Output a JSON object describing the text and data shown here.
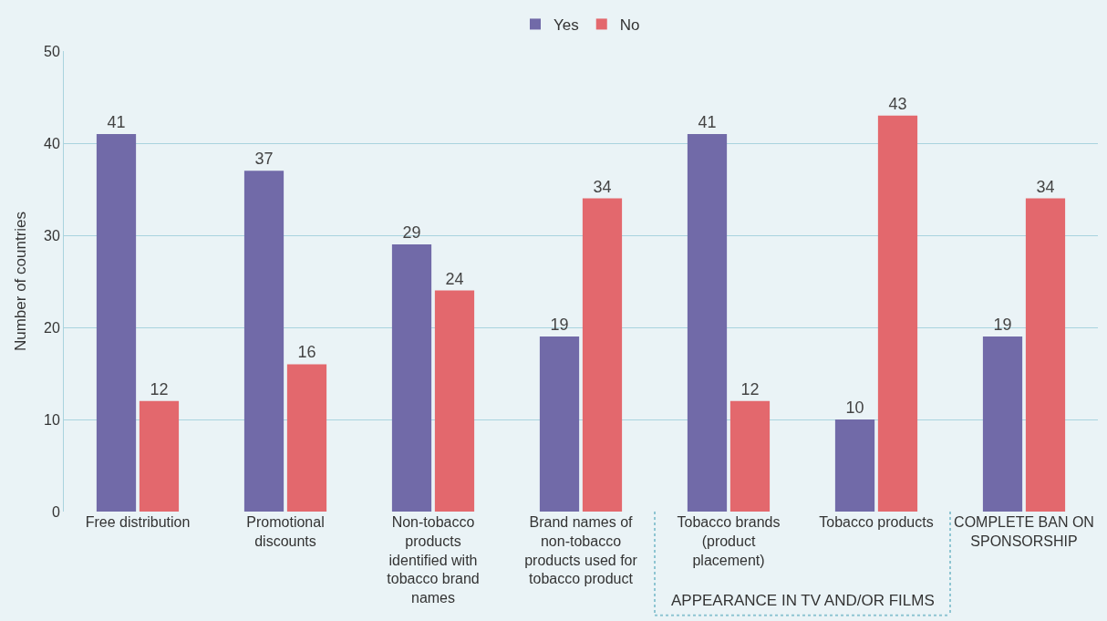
{
  "chart_data": {
    "type": "bar",
    "categories": [
      "Free distribution",
      "Promotional discounts",
      "Non-tobacco products identified with tobacco brand names",
      "Brand names of non-tobacco products used for tobacco product",
      "Tobacco brands (product placement)",
      "Tobacco products",
      "COMPLETE BAN ON SPONSORSHIP"
    ],
    "series": [
      {
        "name": "Yes",
        "color": "#716aa8",
        "values": [
          41,
          37,
          29,
          19,
          41,
          10,
          19
        ]
      },
      {
        "name": "No",
        "color": "#e3686d",
        "values": [
          12,
          16,
          24,
          34,
          12,
          43,
          34
        ]
      }
    ],
    "ylabel": "Number of countries",
    "ylim": [
      0,
      50
    ],
    "yticks": [
      0,
      10,
      20,
      30,
      40,
      50
    ],
    "grid": "y",
    "legend": "top",
    "data_labels": true,
    "annotations": [
      "APPEARANCE IN TV AND/OR FILMS"
    ]
  }
}
